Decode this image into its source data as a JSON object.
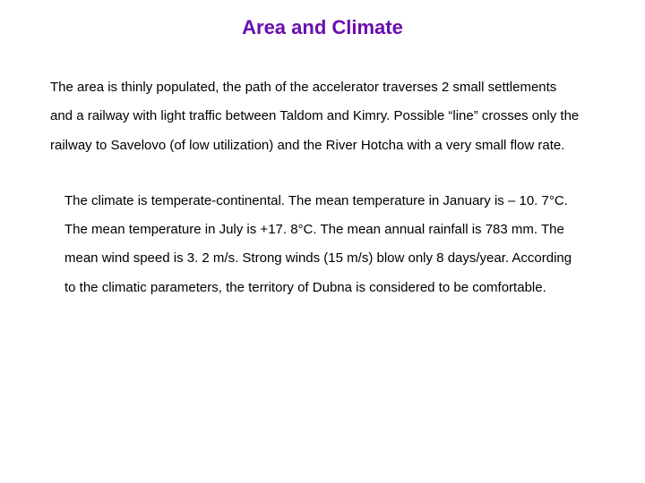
{
  "title_text": "Area and Climate",
  "title_color": "#6a0dad",
  "body_color": "#000000",
  "background_color": "#ffffff",
  "title_fontsize": 22,
  "body_fontsize": 15,
  "line_height": 2.15,
  "font_family": "Arial, Helvetica, sans-serif",
  "paragraph1": "The area is thinly populated, the path of the accelerator traverses 2 small settlements and a railway with light traffic between Taldom and Kimry. Possible “line” crosses only the railway to Savelovo (of low utilization) and the River Hotcha with a very small flow rate.",
  "paragraph2": "The climate is temperate-continental. The mean temperature in January is – 10. 7°C. The mean temperature in July is +17. 8°C. The mean annual rainfall is 783 mm. The mean wind speed is 3. 2 m/s. Strong winds (15 m/s) blow only 8 days/year. According to the climatic parameters, the territory of Dubna is considered to be comfortable."
}
